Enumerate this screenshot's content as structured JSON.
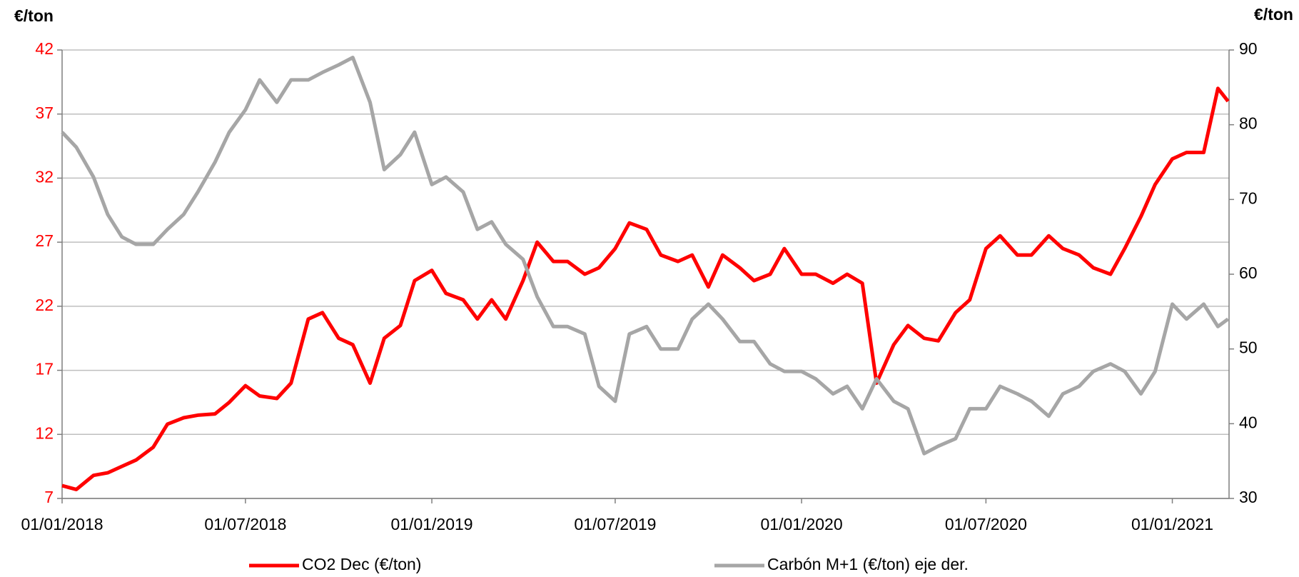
{
  "chart_data": {
    "type": "line",
    "y_label": "€/ton",
    "y2_label": "€/ton",
    "x": [
      "01/01/2018",
      "15/01/2018",
      "01/02/2018",
      "15/02/2018",
      "01/03/2018",
      "15/03/2018",
      "01/04/2018",
      "15/04/2018",
      "01/05/2018",
      "15/05/2018",
      "01/06/2018",
      "15/06/2018",
      "01/07/2018",
      "15/07/2018",
      "01/08/2018",
      "15/08/2018",
      "01/09/2018",
      "15/09/2018",
      "01/10/2018",
      "15/10/2018",
      "01/11/2018",
      "15/11/2018",
      "01/12/2018",
      "15/12/2018",
      "01/01/2019",
      "15/01/2019",
      "01/02/2019",
      "15/02/2019",
      "01/03/2019",
      "15/03/2019",
      "01/04/2019",
      "15/04/2019",
      "01/05/2019",
      "15/05/2019",
      "01/06/2019",
      "15/06/2019",
      "01/07/2019",
      "15/07/2019",
      "01/08/2019",
      "15/08/2019",
      "01/09/2019",
      "15/09/2019",
      "01/10/2019",
      "15/10/2019",
      "01/11/2019",
      "15/11/2019",
      "01/12/2019",
      "15/12/2019",
      "01/01/2020",
      "15/01/2020",
      "01/02/2020",
      "15/02/2020",
      "01/03/2020",
      "15/03/2020",
      "01/04/2020",
      "15/04/2020",
      "01/05/2020",
      "15/05/2020",
      "01/06/2020",
      "15/06/2020",
      "01/07/2020",
      "15/07/2020",
      "01/08/2020",
      "15/08/2020",
      "01/09/2020",
      "15/09/2020",
      "01/10/2020",
      "15/10/2020",
      "01/11/2020",
      "15/11/2020",
      "01/12/2020",
      "15/12/2020",
      "01/01/2021",
      "15/01/2021",
      "01/02/2021",
      "15/02/2021",
      "25/02/2021"
    ],
    "series": [
      {
        "name": "CO2 Dec (€/ton)",
        "color": "#ff0000",
        "values": [
          8.0,
          7.7,
          8.8,
          9.0,
          9.5,
          10.0,
          11.0,
          12.8,
          13.3,
          13.5,
          13.6,
          14.5,
          15.8,
          15.0,
          14.8,
          16.0,
          21.0,
          21.5,
          19.5,
          19.0,
          16.0,
          19.5,
          20.5,
          24.0,
          24.8,
          23.0,
          22.5,
          21.0,
          22.5,
          21.0,
          24.0,
          27.0,
          25.5,
          25.5,
          24.5,
          25.0,
          26.5,
          28.5,
          28.0,
          26.0,
          25.5,
          26.0,
          23.5,
          26.0,
          25.0,
          24.0,
          24.5,
          26.5,
          24.5,
          24.5,
          23.8,
          24.5,
          23.8,
          16.0,
          19.0,
          20.5,
          19.5,
          19.3,
          21.5,
          22.5,
          26.5,
          27.5,
          26.0,
          26.0,
          27.5,
          26.5,
          26.0,
          25.0,
          24.5,
          26.5,
          29.0,
          31.5,
          33.5,
          34.0,
          34.0,
          39.0,
          38.0
        ]
      },
      {
        "name": "Carbón M+1 (€/ton) eje der.",
        "color": "#a6a6a6",
        "axis": "y2",
        "values": [
          79,
          77,
          73,
          68,
          65,
          64,
          64,
          66,
          68,
          71,
          75,
          79,
          82,
          86,
          83,
          86,
          86,
          87,
          88,
          89,
          83,
          74,
          76,
          79,
          72,
          73,
          71,
          66,
          67,
          64,
          62,
          57,
          53,
          53,
          52,
          45,
          43,
          52,
          53,
          50,
          50,
          54,
          56,
          54,
          51,
          51,
          48,
          47,
          47,
          46,
          44,
          45,
          42,
          46,
          43,
          42,
          36,
          37,
          38,
          42,
          42,
          45,
          44,
          43,
          41,
          44,
          45,
          47,
          48,
          47,
          44,
          47,
          56,
          54,
          56,
          53,
          54
        ]
      }
    ],
    "xlim": [
      "01/01/2018",
      "26/02/2021"
    ],
    "xticks": [
      "01/01/2018",
      "01/07/2018",
      "01/01/2019",
      "01/07/2019",
      "01/01/2020",
      "01/07/2020",
      "01/01/2021"
    ],
    "ylim": [
      7,
      42
    ],
    "yticks": [
      7,
      12,
      17,
      22,
      27,
      32,
      37,
      42
    ],
    "y2lim": [
      30,
      90
    ],
    "y2ticks": [
      30,
      40,
      50,
      60,
      70,
      80,
      90
    ],
    "ytick_color": "#ff0000",
    "grid": true,
    "legend": "bottom"
  }
}
